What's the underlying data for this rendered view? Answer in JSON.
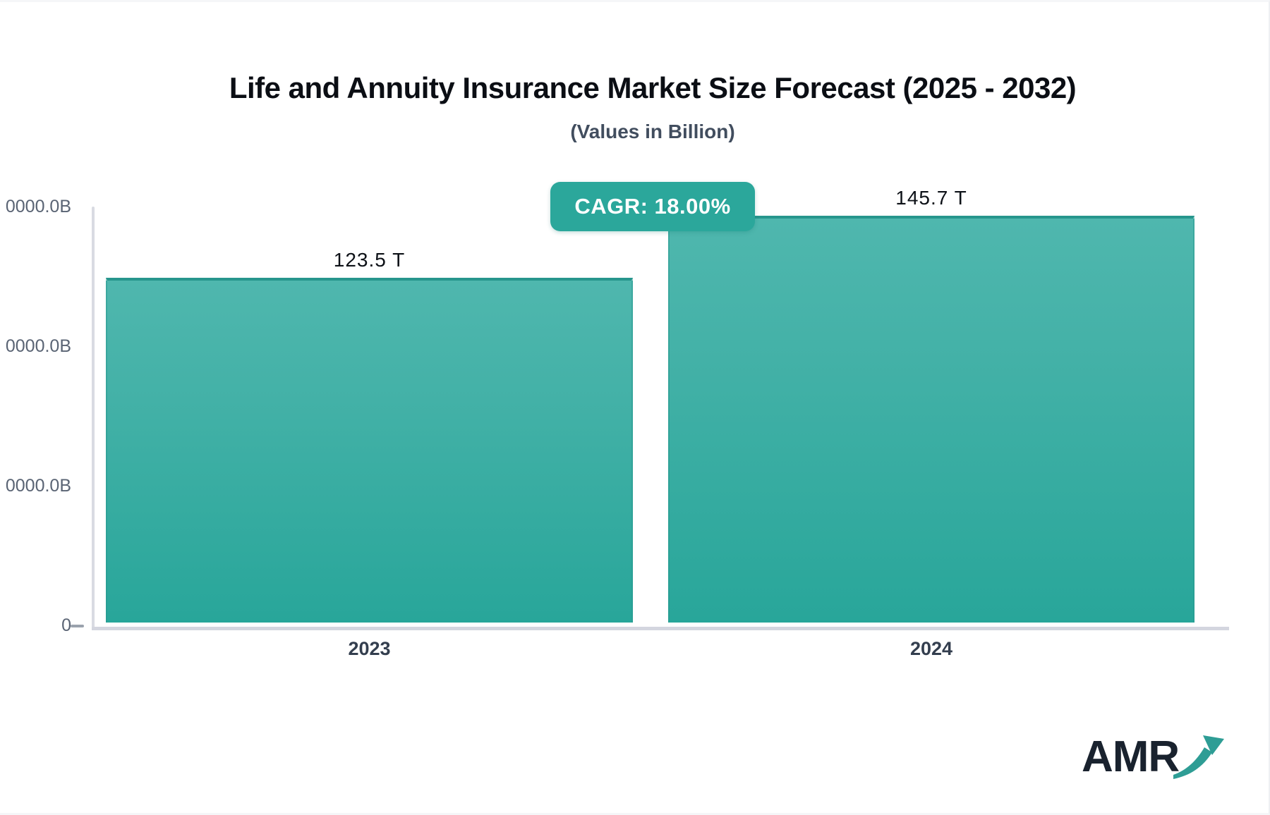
{
  "header": {
    "title": "Life and Annuity Insurance Market Size Forecast (2025 - 2032)",
    "subtitle": "(Values in Billion)"
  },
  "badge": {
    "label": "CAGR: 18.00%",
    "color": "#2BA79B"
  },
  "chart_data": {
    "type": "bar",
    "title": "Life and Annuity Insurance Market Size Forecast (2025 - 2032)",
    "subtitle": "(Values in Billion)",
    "cagr_label": "CAGR: 18.00%",
    "categories": [
      "2023",
      "2024"
    ],
    "values": [
      123500,
      145700
    ],
    "value_labels": [
      "123.5 T",
      "145.7 T"
    ],
    "unit": "Billion",
    "ylim": [
      0,
      150000
    ],
    "y_tick_labels": [
      "0000.0B",
      "0000.0B",
      "0000.0B",
      "0"
    ],
    "grid": "off",
    "legend": "none",
    "bar_gradient_top": "#4FB7AE",
    "bar_gradient_bottom": "#28A69A",
    "bar_border_color": "#27968D",
    "axis_color": "#D6D8E0"
  },
  "logo": {
    "text": "AMR",
    "arrow_color": "#2E9D95"
  }
}
